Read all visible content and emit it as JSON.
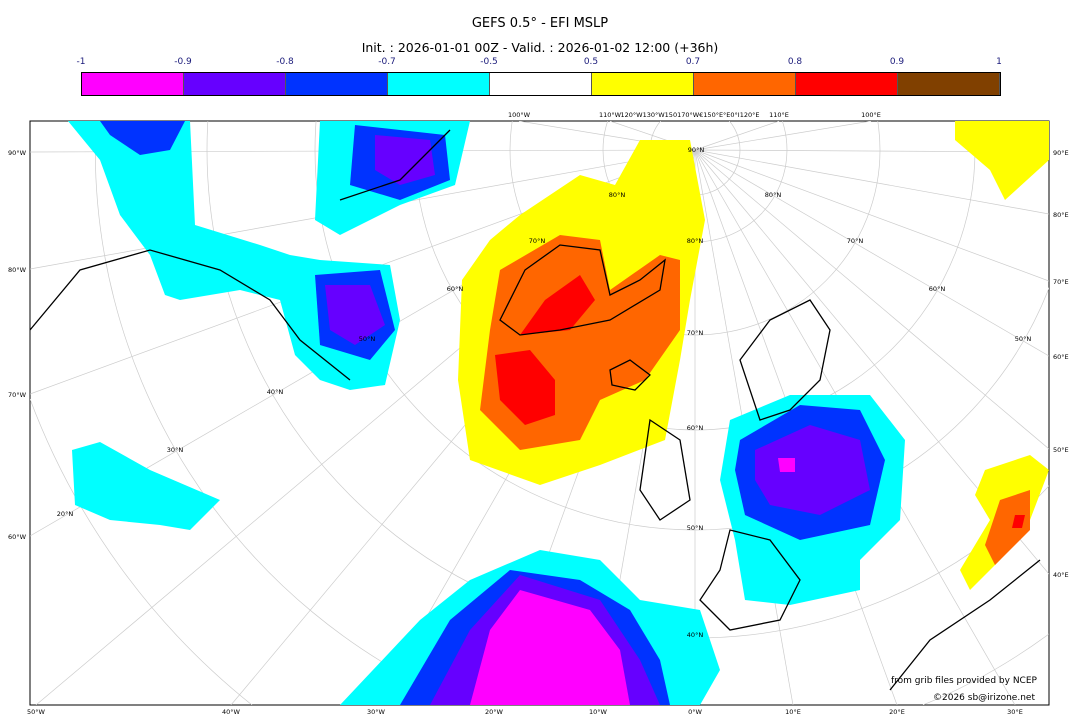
{
  "header": {
    "title": "GEFS 0.5° - EFI MSLP",
    "subtitle": "Init. : 2026-01-01 00Z - Valid. : 2026-01-02 12:00 (+36h)"
  },
  "colorbar": {
    "ticks": [
      "-1",
      "-0.9",
      "-0.8",
      "-0.7",
      "-0.5",
      "0.5",
      "0.7",
      "0.8",
      "0.9",
      "1"
    ],
    "colors": [
      "#ff00ff",
      "#6600ff",
      "#0033ff",
      "#00ffff",
      "#ffffff",
      "#ffff00",
      "#ff6600",
      "#ff0000",
      "#804000"
    ]
  },
  "map": {
    "top_labels": [
      "100°W",
      "110°W",
      "120°W130°W150170°W€150°E°E0°I120°E",
      "110°E",
      "100°E"
    ],
    "bottom_labels": [
      "50°W",
      "40°W",
      "30°W",
      "20°W",
      "10°W",
      "0°W",
      "10°E",
      "20°E",
      "30°E"
    ],
    "left_labels": [
      "90°W",
      "80°W",
      "70°W",
      "60°W"
    ],
    "right_labels": [
      "90°E",
      "80°E",
      "70°E",
      "60°E",
      "50°E",
      "40°E"
    ],
    "lat_labels": [
      "90°N",
      "80°N",
      "80°N",
      "80°N",
      "70°N",
      "70°N",
      "70°N",
      "60°N",
      "60°N",
      "60°N",
      "50°N",
      "50°N",
      "50°N",
      "40°N",
      "40°N",
      "30°N",
      "20°N"
    ]
  },
  "credits": {
    "source": "from grib files provided by NCEP",
    "copyright": "©2026 sb@irizone.net"
  }
}
